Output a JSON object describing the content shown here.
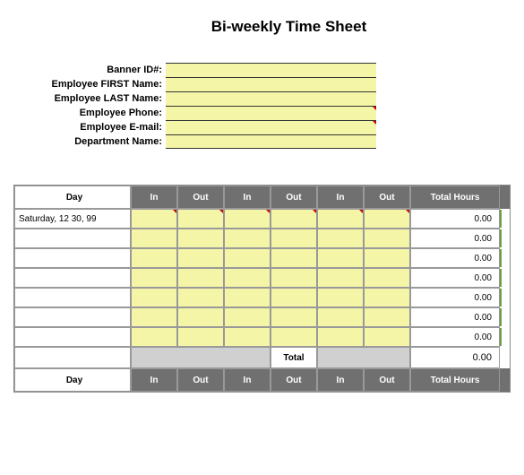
{
  "title": "Bi-weekly Time Sheet",
  "info_fields": [
    {
      "label": "Banner ID#:",
      "value": "",
      "marker": false
    },
    {
      "label": "Employee FIRST Name:",
      "value": "",
      "marker": false
    },
    {
      "label": "Employee LAST Name:",
      "value": "",
      "marker": false
    },
    {
      "label": "Employee Phone:",
      "value": "",
      "marker": true
    },
    {
      "label": "Employee E-mail:",
      "value": "",
      "marker": true
    },
    {
      "label": "Department Name:",
      "value": "",
      "marker": false
    }
  ],
  "table": {
    "headers": {
      "day": "Day",
      "in": "In",
      "out": "Out",
      "total": "Total Hours"
    },
    "rows": [
      {
        "day": "Saturday, 12 30, 99",
        "cells": [
          "",
          "",
          "",
          "",
          "",
          ""
        ],
        "total": "0.00",
        "markers": [
          true,
          true,
          true,
          true,
          true,
          true
        ]
      },
      {
        "day": "",
        "cells": [
          "",
          "",
          "",
          "",
          "",
          ""
        ],
        "total": "0.00",
        "markers": [
          false,
          false,
          false,
          false,
          false,
          false
        ]
      },
      {
        "day": "",
        "cells": [
          "",
          "",
          "",
          "",
          "",
          ""
        ],
        "total": "0.00",
        "markers": [
          false,
          false,
          false,
          false,
          false,
          false
        ]
      },
      {
        "day": "",
        "cells": [
          "",
          "",
          "",
          "",
          "",
          ""
        ],
        "total": "0.00",
        "markers": [
          false,
          false,
          false,
          false,
          false,
          false
        ]
      },
      {
        "day": "",
        "cells": [
          "",
          "",
          "",
          "",
          "",
          ""
        ],
        "total": "0.00",
        "markers": [
          false,
          false,
          false,
          false,
          false,
          false
        ]
      },
      {
        "day": "",
        "cells": [
          "",
          "",
          "",
          "",
          "",
          ""
        ],
        "total": "0.00",
        "markers": [
          false,
          false,
          false,
          false,
          false,
          false
        ]
      },
      {
        "day": "",
        "cells": [
          "",
          "",
          "",
          "",
          "",
          ""
        ],
        "total": "0.00",
        "markers": [
          false,
          false,
          false,
          false,
          false,
          false
        ]
      }
    ],
    "total_label": "Total",
    "total_value": "0.00"
  },
  "colors": {
    "yellow_fill": "#f5f5a8",
    "header_bg": "#707070",
    "gray_fill": "#d0d0d0",
    "marker_red": "#cc0000",
    "green_edge": "#6a9e3f"
  }
}
